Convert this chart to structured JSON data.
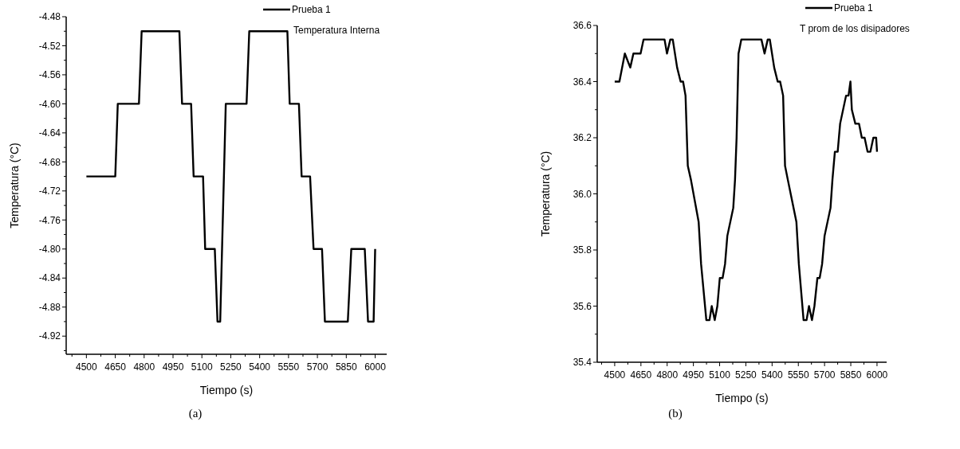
{
  "chart_data": [
    {
      "type": "line",
      "xlabel": "Tiempo (s)",
      "ylabel": "Temperatura (°C)",
      "legend_title": "Temperatura Interna",
      "legend": "top right",
      "annotations": [
        "(a)"
      ],
      "xlim": [
        4395,
        6060
      ],
      "xticks": [
        4500,
        4650,
        4800,
        4950,
        5100,
        5250,
        5400,
        5550,
        5700,
        5850,
        6000
      ],
      "ylim": [
        -4.945,
        -4.48
      ],
      "yticks": [
        -4.48,
        -4.52,
        -4.56,
        {
          "value": -4.6,
          "label": "-4.60"
        },
        -4.64,
        -4.68,
        -4.72,
        -4.76,
        {
          "value": -4.8,
          "label": "-4.80"
        },
        -4.84,
        -4.88,
        -4.92
      ],
      "series": [
        {
          "name": "Prueba 1",
          "color": "#000000",
          "x": [
            4500,
            4650,
            4663,
            4773,
            4787,
            4983,
            4997,
            5044,
            5057,
            5106,
            5117,
            5167,
            5181,
            5195,
            5224,
            5332,
            5346,
            5544,
            5556,
            5604,
            5618,
            5662,
            5680,
            5724,
            5739,
            5858,
            5876,
            5946,
            5963,
            5992,
            6000
          ],
          "values": [
            -4.7,
            -4.7,
            -4.6,
            -4.6,
            -4.5,
            -4.5,
            -4.6,
            -4.6,
            -4.7,
            -4.7,
            -4.8,
            -4.8,
            -4.9,
            -4.9,
            -4.6,
            -4.6,
            -4.5,
            -4.5,
            -4.6,
            -4.6,
            -4.7,
            -4.7,
            -4.8,
            -4.8,
            -4.9,
            -4.9,
            -4.8,
            -4.8,
            -4.9,
            -4.9,
            -4.8
          ]
        }
      ]
    },
    {
      "type": "line",
      "xlabel": "Tiempo (s)",
      "ylabel": "Temperatura (°C)",
      "legend_title": "T prom de los disipadores",
      "legend": "top right",
      "annotations": [
        "(b)"
      ],
      "xlim": [
        4400,
        6055
      ],
      "xticks": [
        4500,
        4650,
        4800,
        4950,
        5100,
        5250,
        5400,
        5550,
        5700,
        5850,
        6000
      ],
      "ylim": [
        35.4,
        36.6
      ],
      "yticks": [
        {
          "value": 35.4,
          "label": "35.4"
        },
        {
          "value": 35.6,
          "label": "35.6"
        },
        {
          "value": 35.8,
          "label": "35.8"
        },
        {
          "value": 36,
          "label": "36.0"
        },
        {
          "value": 36.2,
          "label": "36.2"
        },
        {
          "value": 36.4,
          "label": "36.4"
        },
        {
          "value": 36.6,
          "label": "36.6"
        }
      ],
      "series": [
        {
          "name": "Prueba 1",
          "color": "#000000",
          "x": [
            4500,
            4527,
            4558,
            4589,
            4607,
            4648,
            4665,
            4785,
            4799,
            4818,
            4832,
            4857,
            4877,
            4891,
            4905,
            4918,
            4936,
            4980,
            4994,
            5024,
            5042,
            5055,
            5072,
            5087,
            5101,
            5117,
            5131,
            5144,
            5178,
            5188,
            5197,
            5208,
            5224,
            5339,
            5357,
            5375,
            5387,
            5412,
            5432,
            5446,
            5463,
            5474,
            5490,
            5539,
            5553,
            5580,
            5597,
            5611,
            5628,
            5642,
            5659,
            5672,
            5686,
            5700,
            5734,
            5745,
            5759,
            5775,
            5789,
            5823,
            5837,
            5848,
            5856,
            5876,
            5897,
            5913,
            5929,
            5946,
            5962,
            5979,
            5995,
            6000
          ],
          "values": [
            36.4,
            36.4,
            36.5,
            36.45,
            36.5,
            36.5,
            36.55,
            36.55,
            36.5,
            36.55,
            36.55,
            36.45,
            36.4,
            36.4,
            36.35,
            36.1,
            36.05,
            35.9,
            35.75,
            35.55,
            35.55,
            35.6,
            35.55,
            35.6,
            35.7,
            35.7,
            35.75,
            35.85,
            35.95,
            36.05,
            36.2,
            36.5,
            36.55,
            36.55,
            36.5,
            36.55,
            36.55,
            36.45,
            36.4,
            36.4,
            36.35,
            36.1,
            36.05,
            35.9,
            35.75,
            35.55,
            35.55,
            35.6,
            35.55,
            35.6,
            35.7,
            35.7,
            35.75,
            35.85,
            35.95,
            36.05,
            36.15,
            36.15,
            36.25,
            36.35,
            36.35,
            36.4,
            36.3,
            36.25,
            36.25,
            36.2,
            36.2,
            36.15,
            36.15,
            36.2,
            36.2,
            36.15
          ]
        }
      ]
    }
  ]
}
